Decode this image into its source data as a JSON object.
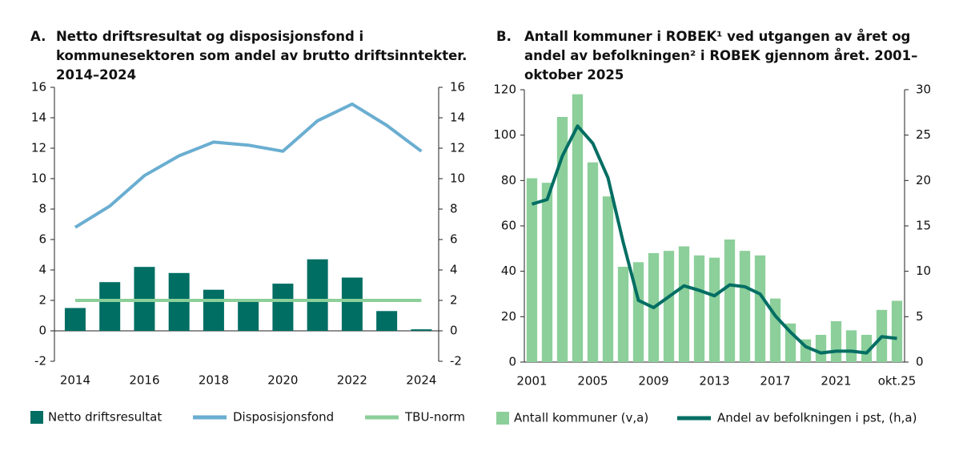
{
  "chart_data": [
    {
      "type": "combo",
      "panel": "A.",
      "title": "Netto driftsresultat og disposisjonsfond i kommunesektoren som andel av brutto driftsinntekter. 2014–2024",
      "x": [
        2014,
        2015,
        2016,
        2017,
        2018,
        2019,
        2020,
        2021,
        2022,
        2023,
        2024
      ],
      "xlim": [
        2013.4,
        2024.5
      ],
      "xticks": [
        2014,
        2016,
        2018,
        2020,
        2022,
        2024
      ],
      "ylim": [
        -2,
        16
      ],
      "yticks": [
        -2,
        0,
        2,
        4,
        6,
        8,
        10,
        12,
        14,
        16
      ],
      "y2lim": [
        -2,
        16
      ],
      "y2ticks": [
        -2,
        0,
        2,
        4,
        6,
        8,
        10,
        12,
        14,
        16
      ],
      "series": [
        {
          "name": "Netto driftsresultat",
          "type": "bar",
          "color": "#006e63",
          "values": [
            1.5,
            3.2,
            4.2,
            3.8,
            2.7,
            1.9,
            3.1,
            4.7,
            3.5,
            1.3,
            0.1
          ]
        },
        {
          "name": "Disposisjonsfond",
          "type": "line",
          "color": "#6aaed1",
          "values": [
            6.8,
            8.2,
            10.2,
            11.5,
            12.4,
            12.2,
            11.8,
            13.8,
            14.9,
            13.5,
            11.8
          ]
        },
        {
          "name": "TBU-norm",
          "type": "line",
          "color": "#8ccf9a",
          "values": [
            2,
            2,
            2,
            2,
            2,
            2,
            2,
            2,
            2,
            2,
            2
          ]
        }
      ]
    },
    {
      "type": "combo",
      "panel": "B.",
      "title": "Antall kommuner i ROBEK¹ ved utgangen av året og andel av befolkningen² i ROBEK gjennom året. 2001–oktober 2025",
      "categories": [
        "2001",
        null,
        null,
        null,
        "2005",
        null,
        null,
        null,
        "2009",
        null,
        null,
        null,
        "2013",
        null,
        null,
        null,
        "2017",
        null,
        null,
        null,
        "2021",
        null,
        null,
        null,
        "okt.25"
      ],
      "ylim": [
        0,
        120
      ],
      "yticks": [
        0,
        20,
        40,
        60,
        80,
        100,
        120
      ],
      "y2lim": [
        0,
        30
      ],
      "y2ticks": [
        0,
        5,
        10,
        15,
        20,
        25,
        30
      ],
      "series": [
        {
          "name": "Antall kommuner (v,a)",
          "type": "bar",
          "color": "#8ccf9a",
          "values": [
            81,
            79,
            108,
            118,
            88,
            73,
            42,
            44,
            48,
            49,
            51,
            47,
            46,
            54,
            49,
            47,
            28,
            17,
            10,
            12,
            18,
            14,
            12,
            23,
            27
          ]
        },
        {
          "name": "Andel av befolkningen i pst, (h,a)",
          "type": "line",
          "axis": "y2",
          "color": "#006e63",
          "values": [
            17.4,
            17.9,
            22.7,
            26,
            24.1,
            20.3,
            13.2,
            6.8,
            6.0,
            7.2,
            8.4,
            7.9,
            7.3,
            8.5,
            8.3,
            7.5,
            5.1,
            3.3,
            1.7,
            1.0,
            1.2,
            1.2,
            1.0,
            2.8,
            2.6
          ]
        }
      ]
    }
  ]
}
